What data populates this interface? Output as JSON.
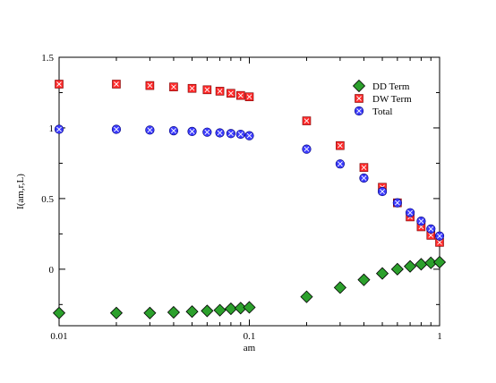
{
  "chart_data": {
    "type": "scatter",
    "x_scale": "log",
    "xlim": [
      0.01,
      1
    ],
    "ylim": [
      -0.4,
      1.5
    ],
    "xlabel": "am",
    "ylabel": "I(am,r,L)",
    "x_ticks": [
      {
        "value": 0.01,
        "label": "0.01"
      },
      {
        "value": 0.1,
        "label": "0.1"
      },
      {
        "value": 1,
        "label": "1"
      }
    ],
    "y_ticks": [
      {
        "value": 0,
        "label": "0"
      },
      {
        "value": 0.5,
        "label": "0.5"
      },
      {
        "value": 1,
        "label": "1"
      },
      {
        "value": 1.5,
        "label": "1.5"
      }
    ],
    "grid": false,
    "legend_position": "top-right",
    "series": [
      {
        "name": "DD Term",
        "marker": "diamond",
        "color": "#2ca02c",
        "points": [
          [
            0.01,
            -0.31
          ],
          [
            0.02,
            -0.31
          ],
          [
            0.03,
            -0.31
          ],
          [
            0.04,
            -0.305
          ],
          [
            0.05,
            -0.3
          ],
          [
            0.06,
            -0.295
          ],
          [
            0.07,
            -0.29
          ],
          [
            0.08,
            -0.28
          ],
          [
            0.09,
            -0.275
          ],
          [
            0.1,
            -0.27
          ],
          [
            0.2,
            -0.195
          ],
          [
            0.3,
            -0.13
          ],
          [
            0.4,
            -0.075
          ],
          [
            0.5,
            -0.03
          ],
          [
            0.6,
            0.0
          ],
          [
            0.7,
            0.02
          ],
          [
            0.8,
            0.035
          ],
          [
            0.9,
            0.045
          ],
          [
            1.0,
            0.05
          ]
        ]
      },
      {
        "name": "DW Term",
        "marker": "square",
        "color": "#ff2a2a",
        "points": [
          [
            0.01,
            1.31
          ],
          [
            0.02,
            1.31
          ],
          [
            0.03,
            1.3
          ],
          [
            0.04,
            1.29
          ],
          [
            0.05,
            1.28
          ],
          [
            0.06,
            1.27
          ],
          [
            0.07,
            1.26
          ],
          [
            0.08,
            1.245
          ],
          [
            0.09,
            1.23
          ],
          [
            0.1,
            1.22
          ],
          [
            0.2,
            1.05
          ],
          [
            0.3,
            0.875
          ],
          [
            0.4,
            0.72
          ],
          [
            0.5,
            0.58
          ],
          [
            0.6,
            0.47
          ],
          [
            0.7,
            0.37
          ],
          [
            0.8,
            0.3
          ],
          [
            0.9,
            0.24
          ],
          [
            1.0,
            0.19
          ]
        ]
      },
      {
        "name": "Total",
        "marker": "circle",
        "color": "#3b3bff",
        "points": [
          [
            0.01,
            0.99
          ],
          [
            0.02,
            0.99
          ],
          [
            0.03,
            0.985
          ],
          [
            0.04,
            0.98
          ],
          [
            0.05,
            0.975
          ],
          [
            0.06,
            0.97
          ],
          [
            0.07,
            0.965
          ],
          [
            0.08,
            0.96
          ],
          [
            0.09,
            0.955
          ],
          [
            0.1,
            0.945
          ],
          [
            0.2,
            0.85
          ],
          [
            0.3,
            0.745
          ],
          [
            0.4,
            0.645
          ],
          [
            0.5,
            0.55
          ],
          [
            0.6,
            0.47
          ],
          [
            0.7,
            0.4
          ],
          [
            0.8,
            0.34
          ],
          [
            0.9,
            0.285
          ],
          [
            1.0,
            0.235
          ]
        ]
      }
    ]
  }
}
